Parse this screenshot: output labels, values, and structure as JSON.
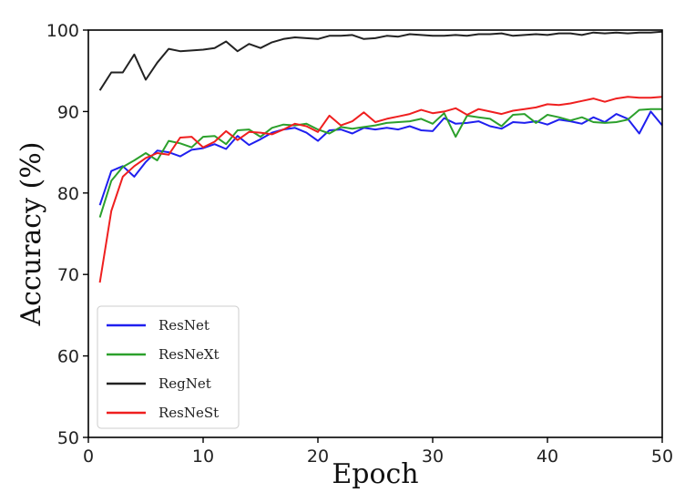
{
  "chart_data": {
    "type": "line",
    "title": "",
    "xlabel": "Epoch",
    "ylabel": "Accuracy (%)",
    "xlim": [
      0,
      50
    ],
    "ylim": [
      50,
      100
    ],
    "xticks": [
      0,
      10,
      20,
      30,
      40,
      50
    ],
    "yticks": [
      50,
      60,
      70,
      80,
      90,
      100
    ],
    "grid": false,
    "legend_position": "lower-left",
    "x": [
      1,
      2,
      3,
      4,
      5,
      6,
      7,
      8,
      9,
      10,
      11,
      12,
      13,
      14,
      15,
      16,
      17,
      18,
      19,
      20,
      21,
      22,
      23,
      24,
      25,
      26,
      27,
      28,
      29,
      30,
      31,
      32,
      33,
      34,
      35,
      36,
      37,
      38,
      39,
      40,
      41,
      42,
      43,
      44,
      45,
      46,
      47,
      48,
      49,
      50
    ],
    "series": [
      {
        "name": "ResNet",
        "color": "#1f1fef",
        "values": [
          78.5,
          82.7,
          83.3,
          82.0,
          83.8,
          85.2,
          85.0,
          84.5,
          85.3,
          85.5,
          86.0,
          85.4,
          87.0,
          85.9,
          86.6,
          87.4,
          87.8,
          88.0,
          87.4,
          86.4,
          87.7,
          87.8,
          87.3,
          88.0,
          87.8,
          88.0,
          87.8,
          88.2,
          87.7,
          87.6,
          89.2,
          88.5,
          88.6,
          88.8,
          88.2,
          87.9,
          88.7,
          88.6,
          88.8,
          88.4,
          89.0,
          88.8,
          88.5,
          89.3,
          88.7,
          89.7,
          89.1,
          87.3,
          90.0,
          88.3
        ]
      },
      {
        "name": "ResNeXt",
        "color": "#2ca02c",
        "values": [
          77.0,
          81.5,
          83.2,
          84.0,
          84.9,
          84.0,
          86.4,
          86.1,
          85.6,
          86.9,
          87.0,
          86.0,
          87.7,
          87.8,
          86.9,
          88.0,
          88.4,
          88.3,
          88.5,
          87.8,
          87.3,
          88.1,
          87.9,
          88.1,
          88.3,
          88.6,
          88.7,
          88.8,
          89.1,
          88.5,
          89.8,
          86.9,
          89.5,
          89.3,
          89.1,
          88.2,
          89.6,
          89.7,
          88.6,
          89.6,
          89.3,
          88.9,
          89.3,
          88.7,
          88.6,
          88.7,
          89.0,
          90.2,
          90.3,
          90.3
        ]
      },
      {
        "name": "RegNet",
        "color": "#222222",
        "values": [
          92.6,
          94.8,
          94.8,
          97.0,
          93.9,
          96.0,
          97.7,
          97.4,
          97.5,
          97.6,
          97.8,
          98.6,
          97.4,
          98.3,
          97.8,
          98.5,
          98.9,
          99.1,
          99.0,
          98.9,
          99.3,
          99.3,
          99.4,
          98.9,
          99.0,
          99.3,
          99.2,
          99.5,
          99.4,
          99.3,
          99.3,
          99.4,
          99.3,
          99.5,
          99.5,
          99.6,
          99.3,
          99.4,
          99.5,
          99.4,
          99.6,
          99.6,
          99.4,
          99.7,
          99.6,
          99.7,
          99.6,
          99.7,
          99.7,
          99.8
        ]
      },
      {
        "name": "ResNeSt",
        "color": "#ef1f1f",
        "values": [
          69.0,
          77.8,
          82.0,
          83.3,
          84.3,
          84.9,
          84.7,
          86.8,
          86.9,
          85.6,
          86.3,
          87.6,
          86.5,
          87.5,
          87.4,
          87.2,
          87.8,
          88.5,
          88.2,
          87.5,
          89.5,
          88.3,
          88.8,
          89.9,
          88.7,
          89.1,
          89.4,
          89.7,
          90.2,
          89.8,
          90.0,
          90.4,
          89.6,
          90.3,
          90.0,
          89.7,
          90.1,
          90.3,
          90.5,
          90.9,
          90.8,
          91.0,
          91.3,
          91.6,
          91.2,
          91.6,
          91.8,
          91.7,
          91.7,
          91.8
        ]
      }
    ]
  }
}
